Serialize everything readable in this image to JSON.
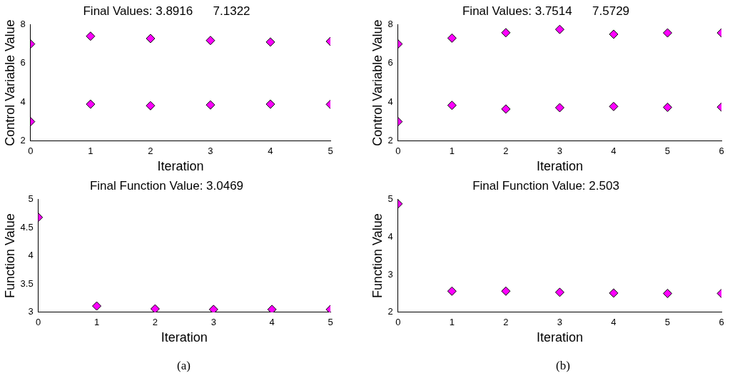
{
  "chart_data": [
    {
      "type": "scatter",
      "title": "Final Values: 3.8916      7.1322",
      "xlabel": "Iteration",
      "ylabel": "Control Variable Value",
      "x": [
        0,
        1,
        2,
        3,
        4,
        5
      ],
      "xlim": [
        0,
        5
      ],
      "xticks": [
        0,
        1,
        2,
        3,
        4,
        5
      ],
      "ylim": [
        2,
        8
      ],
      "yticks": [
        2,
        4,
        6,
        8
      ],
      "marker": "diamond",
      "grid": false,
      "legend": false,
      "series": [
        {
          "color": "#ff00ff",
          "values": [
            3,
            3.9,
            3.82,
            3.86,
            3.9,
            3.89
          ]
        },
        {
          "color": "#ff00ff",
          "values": [
            7,
            7.4,
            7.28,
            7.18,
            7.1,
            7.13
          ]
        }
      ]
    },
    {
      "type": "scatter",
      "title": "Final Values: 3.7514      7.5729",
      "xlabel": "Iteration",
      "ylabel": "Control Variable Value",
      "x": [
        0,
        1,
        2,
        3,
        4,
        5,
        6
      ],
      "xlim": [
        0,
        6
      ],
      "xticks": [
        0,
        1,
        2,
        3,
        4,
        5,
        6
      ],
      "ylim": [
        2,
        8
      ],
      "yticks": [
        2,
        4,
        6,
        8
      ],
      "marker": "diamond",
      "grid": false,
      "legend": false,
      "series": [
        {
          "color": "#ff00ff",
          "values": [
            3,
            3.84,
            3.65,
            3.72,
            3.78,
            3.74,
            3.75
          ]
        },
        {
          "color": "#ff00ff",
          "values": [
            7,
            7.3,
            7.58,
            7.75,
            7.5,
            7.57,
            7.57
          ]
        }
      ]
    },
    {
      "type": "scatter",
      "title": "Final Function Value: 3.0469",
      "xlabel": "Iteration",
      "ylabel": "Function Value",
      "x": [
        0,
        1,
        2,
        3,
        4,
        5
      ],
      "xlim": [
        0,
        5
      ],
      "xticks": [
        0,
        1,
        2,
        3,
        4,
        5
      ],
      "ylim": [
        3,
        5
      ],
      "yticks": [
        3,
        3.5,
        4,
        4.5,
        5
      ],
      "marker": "diamond",
      "grid": false,
      "legend": false,
      "annotations": [
        "(a)"
      ],
      "series": [
        {
          "color": "#ff00ff",
          "values": [
            4.68,
            3.11,
            3.06,
            3.05,
            3.05,
            3.05
          ]
        }
      ]
    },
    {
      "type": "scatter",
      "title": "Final Function Value: 2.503",
      "xlabel": "Iteration",
      "ylabel": "Function Value",
      "x": [
        0,
        1,
        2,
        3,
        4,
        5,
        6
      ],
      "xlim": [
        0,
        6
      ],
      "xticks": [
        0,
        1,
        2,
        3,
        4,
        5,
        6
      ],
      "ylim": [
        2,
        5
      ],
      "yticks": [
        2,
        3,
        4,
        5
      ],
      "marker": "diamond",
      "grid": false,
      "legend": false,
      "annotations": [
        "(b)"
      ],
      "series": [
        {
          "color": "#ff00ff",
          "values": [
            4.88,
            2.56,
            2.56,
            2.53,
            2.51,
            2.5,
            2.5
          ]
        }
      ]
    }
  ]
}
